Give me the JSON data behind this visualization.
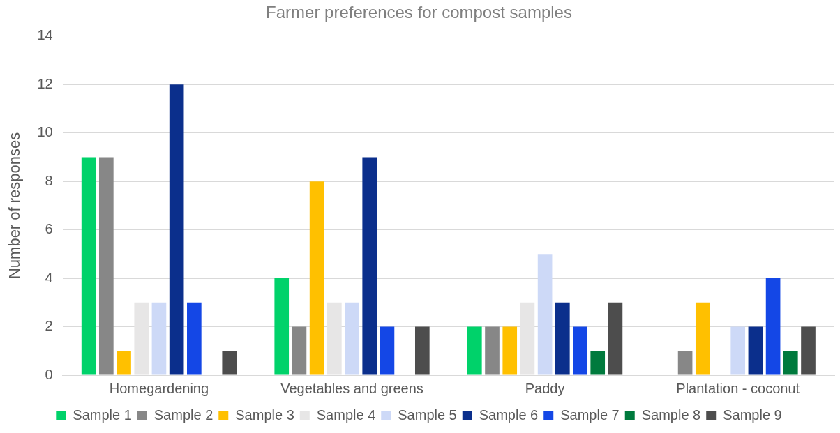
{
  "chart_data": {
    "type": "bar",
    "title": "Farmer preferences for compost samples",
    "ylabel": "Number of responses",
    "categories": [
      "Homegardening",
      "Vegetables and greens",
      "Paddy",
      "Plantation - coconut"
    ],
    "series": [
      {
        "name": "Sample 1",
        "color": "#00d26a",
        "values": [
          9,
          4,
          2,
          0
        ]
      },
      {
        "name": "Sample 2",
        "color": "#878787",
        "values": [
          9,
          2,
          2,
          1
        ]
      },
      {
        "name": "Sample 3",
        "color": "#ffc000",
        "values": [
          1,
          8,
          2,
          3
        ]
      },
      {
        "name": "Sample 4",
        "color": "#e7e6e6",
        "values": [
          3,
          3,
          3,
          0
        ]
      },
      {
        "name": "Sample 5",
        "color": "#cdd9f7",
        "values": [
          3,
          3,
          5,
          2
        ]
      },
      {
        "name": "Sample 6",
        "color": "#0b2f8c",
        "values": [
          12,
          9,
          3,
          2
        ]
      },
      {
        "name": "Sample 7",
        "color": "#1447e6",
        "values": [
          3,
          2,
          2,
          4
        ]
      },
      {
        "name": "Sample 8",
        "color": "#007a3d",
        "values": [
          0,
          0,
          1,
          1
        ]
      },
      {
        "name": "Sample 9",
        "color": "#4d4d4d",
        "values": [
          1,
          2,
          3,
          2
        ]
      }
    ],
    "ylim": [
      0,
      14
    ],
    "yticks": [
      0,
      2,
      4,
      6,
      8,
      10,
      12,
      14
    ],
    "grid": "y",
    "legend": "bottom"
  }
}
